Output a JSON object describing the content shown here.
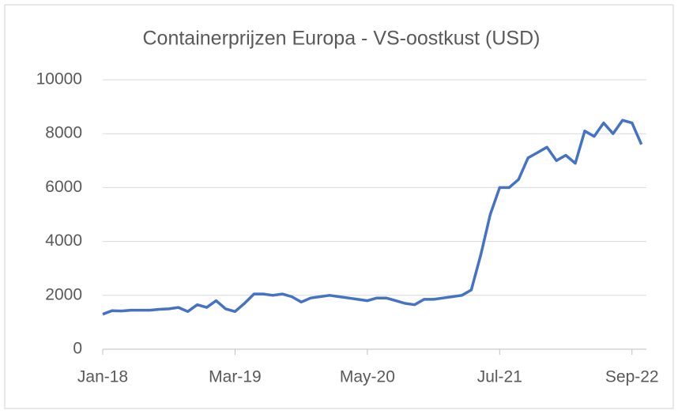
{
  "chart_data": {
    "type": "line",
    "title": "Containerprijzen Europa - VS-oostkust (USD)",
    "categories": [
      "Jan-18",
      null,
      null,
      null,
      null,
      null,
      null,
      null,
      null,
      null,
      null,
      null,
      null,
      null,
      "Mar-19",
      null,
      null,
      null,
      null,
      null,
      null,
      null,
      null,
      null,
      null,
      null,
      null,
      null,
      "May-20",
      null,
      null,
      null,
      null,
      null,
      null,
      null,
      null,
      null,
      null,
      null,
      null,
      null,
      "Jul-21",
      null,
      null,
      null,
      null,
      null,
      null,
      null,
      null,
      null,
      null,
      null,
      null,
      null,
      "Sep-22",
      null
    ],
    "series": [
      {
        "name": "Containerprijzen",
        "color": "#4472c4",
        "values": [
          1300,
          1430,
          1420,
          1450,
          1450,
          1450,
          1480,
          1500,
          1550,
          1400,
          1650,
          1550,
          1800,
          1500,
          1400,
          1700,
          2050,
          2050,
          2000,
          2050,
          1950,
          1750,
          1900,
          1950,
          2000,
          1950,
          1900,
          1850,
          1800,
          1900,
          1900,
          1800,
          1700,
          1650,
          1850,
          1850,
          1900,
          1950,
          2000,
          2200,
          3500,
          5000,
          6000,
          6000,
          6300,
          7100,
          7300,
          7500,
          7000,
          7200,
          6900,
          8100,
          7900,
          8400,
          8000,
          8500,
          8400,
          7600
        ]
      }
    ],
    "ylim": [
      0,
      10000
    ],
    "yticks": [
      0,
      2000,
      4000,
      6000,
      8000,
      10000
    ],
    "grid": true
  }
}
